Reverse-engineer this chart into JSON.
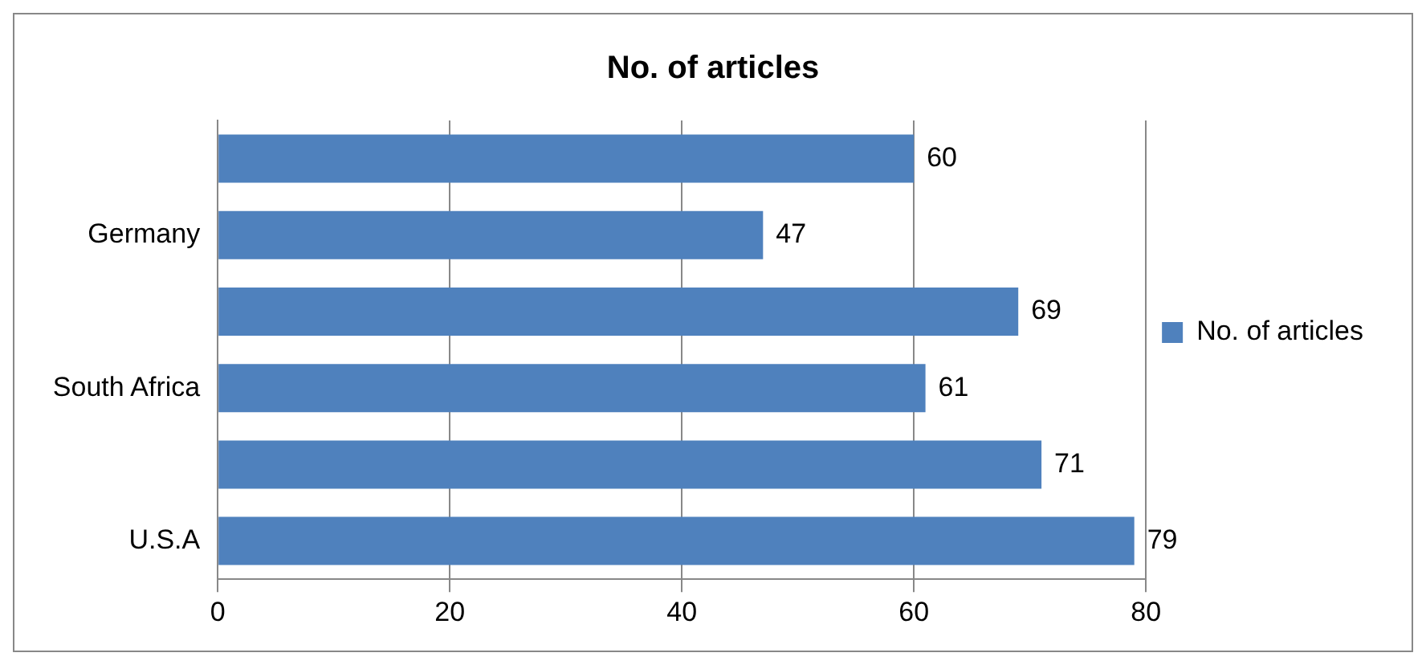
{
  "chart_data": {
    "type": "bar",
    "orientation": "horizontal",
    "title": "No. of articles",
    "categories": [
      null,
      "Germany",
      null,
      "South Africa",
      null,
      "U.S.A"
    ],
    "series": [
      {
        "name": "No. of articles",
        "color": "#4f81bd",
        "values": [
          60,
          47,
          69,
          61,
          71,
          79
        ]
      }
    ],
    "xlim": [
      0,
      80
    ],
    "xticks": [
      0,
      20,
      40,
      60,
      80
    ],
    "grid": "x",
    "legend": "right",
    "data_labels": true
  }
}
